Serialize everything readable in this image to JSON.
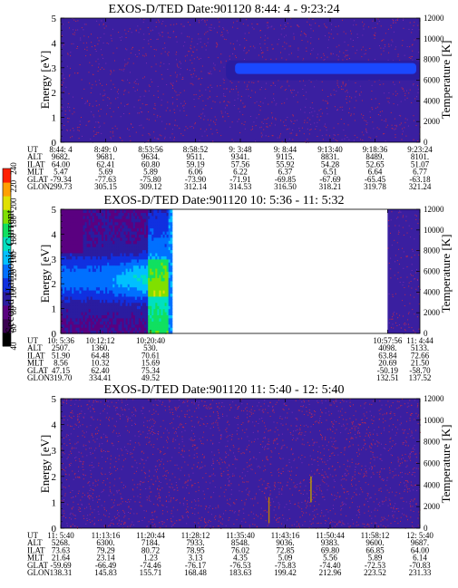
{
  "page": {
    "background": "#ffffff",
    "plot_fill": "#3a1fa0",
    "speckle_color": "#c0284a"
  },
  "colorbar": {
    "label": "Second Harmonic Current",
    "ticks": [
      "40",
      "60",
      "80",
      "100",
      "120",
      "140",
      "160",
      "180",
      "200",
      "220",
      "240"
    ],
    "colors": [
      "#000000",
      "#3a0050",
      "#5a0080",
      "#2a1ca0",
      "#1030e0",
      "#0070ff",
      "#00c0ff",
      "#00e0c0",
      "#10e060",
      "#80e000",
      "#e0e000",
      "#ffa000",
      "#ff2000"
    ]
  },
  "chart_data": [
    {
      "type": "heatmap",
      "title": "EXOS-D/TED   Date:901120   8:44: 4 - 9:23:24",
      "ylabel": "Energy [eV]",
      "y2label": "Temperature [K]",
      "ylim": [
        0,
        5
      ],
      "yticks": [
        "0",
        "1",
        "2",
        "3",
        "4",
        "5"
      ],
      "y2lim": [
        0,
        12000
      ],
      "y2ticks": [
        "0",
        "2000",
        "4000",
        "6000",
        "8000",
        "10000",
        "12000"
      ],
      "x_tick_count": 9,
      "ephemeris": [
        {
          "name": "UT",
          "values": [
            "8:44: 4",
            "8:49: 0",
            "8:53:56",
            "8:58:52",
            "9: 3:48",
            "9: 8:44",
            "9:13:40",
            "9:18:36",
            "9:23:24"
          ]
        },
        {
          "name": "ALT",
          "values": [
            "9682.",
            "9681.",
            "9634.",
            "9511.",
            "9341.",
            "9115.",
            "8831.",
            "8489.",
            "8101."
          ]
        },
        {
          "name": "ILAT",
          "values": [
            "64.00",
            "62.41",
            "60.80",
            "59.19",
            "57.56",
            "55.92",
            "54.28",
            "52.65",
            "51.07"
          ]
        },
        {
          "name": "MLT",
          "values": [
            "5.47",
            "5.69",
            "5.89",
            "6.06",
            "6.22",
            "6.37",
            "6.51",
            "6.64",
            "6.77"
          ]
        },
        {
          "name": "GLAT",
          "values": [
            "-79.34",
            "-77.63",
            "-75.80",
            "-73.90",
            "-71.91",
            "-69.85",
            "-67.69",
            "-65.45",
            "-63.18"
          ]
        },
        {
          "name": "GLON",
          "values": [
            "299.73",
            "305.15",
            "309.12",
            "312.14",
            "314.53",
            "316.50",
            "318.21",
            "319.78",
            "321.24"
          ]
        }
      ],
      "features": [
        {
          "kind": "band",
          "x_range": [
            0.46,
            1.0
          ],
          "y_range": [
            2.5,
            3.3
          ],
          "value": 100
        }
      ],
      "data_gaps": []
    },
    {
      "type": "heatmap",
      "title": "EXOS-D/TED   Date:901120  10: 5:36 - 11: 5:32",
      "ylabel": "Energy [eV]",
      "y2label": "Temperature [K]",
      "ylim": [
        0,
        5
      ],
      "yticks": [
        "0",
        "1",
        "2",
        "3",
        "4",
        "5"
      ],
      "y2lim": [
        0,
        12000
      ],
      "y2ticks": [
        "0",
        "2000",
        "4000",
        "6000",
        "8000",
        "10000",
        "12000"
      ],
      "x_tick_count": 5,
      "ephemeris": [
        {
          "name": "UT",
          "values": [
            "10: 5:36",
            "10:12:12",
            "10:20:40",
            "10:57:56",
            "11: 4:44"
          ]
        },
        {
          "name": "ALT",
          "values": [
            "2507.",
            "1360.",
            "530.",
            "4098.",
            "5133."
          ]
        },
        {
          "name": "ILAT",
          "values": [
            "51.90",
            "64.48",
            "70.61",
            "63.84",
            "72.66"
          ]
        },
        {
          "name": "MLT",
          "values": [
            "8.56",
            "10.32",
            "15.69",
            "20.69",
            "21.50"
          ]
        },
        {
          "name": "GLAT",
          "values": [
            "47.15",
            "62.40",
            "75.34",
            "-50.19",
            "-58.70"
          ]
        },
        {
          "name": "GLON",
          "values": [
            "319.70",
            "334.41",
            "49.52",
            "132.51",
            "137.52"
          ]
        }
      ],
      "data_gaps": [
        [
          0.31,
          0.91
        ]
      ]
    },
    {
      "type": "heatmap",
      "title": "EXOS-D/TED   Date:901120  11: 5:40 - 12: 5:40",
      "ylabel": "Energy [eV]",
      "y2label": "Temperature [K]",
      "ylim": [
        0,
        5
      ],
      "yticks": [
        "0",
        "1",
        "2",
        "3",
        "4",
        "5"
      ],
      "y2lim": [
        0,
        12000
      ],
      "y2ticks": [
        "0",
        "2000",
        "4000",
        "6000",
        "8000",
        "10000",
        "12000"
      ],
      "x_tick_count": 9,
      "ephemeris": [
        {
          "name": "UT",
          "values": [
            "11: 5:40",
            "11:13:16",
            "11:20:44",
            "11:28:12",
            "11:35:40",
            "11:43:16",
            "11:50:44",
            "11:58:12",
            "12: 5:40"
          ]
        },
        {
          "name": "ALT",
          "values": [
            "5268.",
            "6300.",
            "7184.",
            "7933.",
            "8548.",
            "9036.",
            "9383.",
            "9600.",
            "9687."
          ]
        },
        {
          "name": "ILAT",
          "values": [
            "73.63",
            "79.29",
            "80.72",
            "78.95",
            "76.02",
            "72.85",
            "69.80",
            "66.85",
            "64.00"
          ]
        },
        {
          "name": "MLT",
          "values": [
            "21.64",
            "23.14",
            "1.23",
            "3.13",
            "4.35",
            "5.09",
            "5.56",
            "5.89",
            "6.14"
          ]
        },
        {
          "name": "GLAT",
          "values": [
            "-59.69",
            "-66.49",
            "-74.46",
            "-76.17",
            "-76.53",
            "-75.83",
            "-74.40",
            "-72.53",
            "-70.83"
          ]
        },
        {
          "name": "GLON",
          "values": [
            "138.31",
            "145.83",
            "155.71",
            "168.48",
            "183.63",
            "199.42",
            "212.96",
            "223.52",
            "231.33"
          ]
        }
      ],
      "data_gaps": []
    }
  ]
}
